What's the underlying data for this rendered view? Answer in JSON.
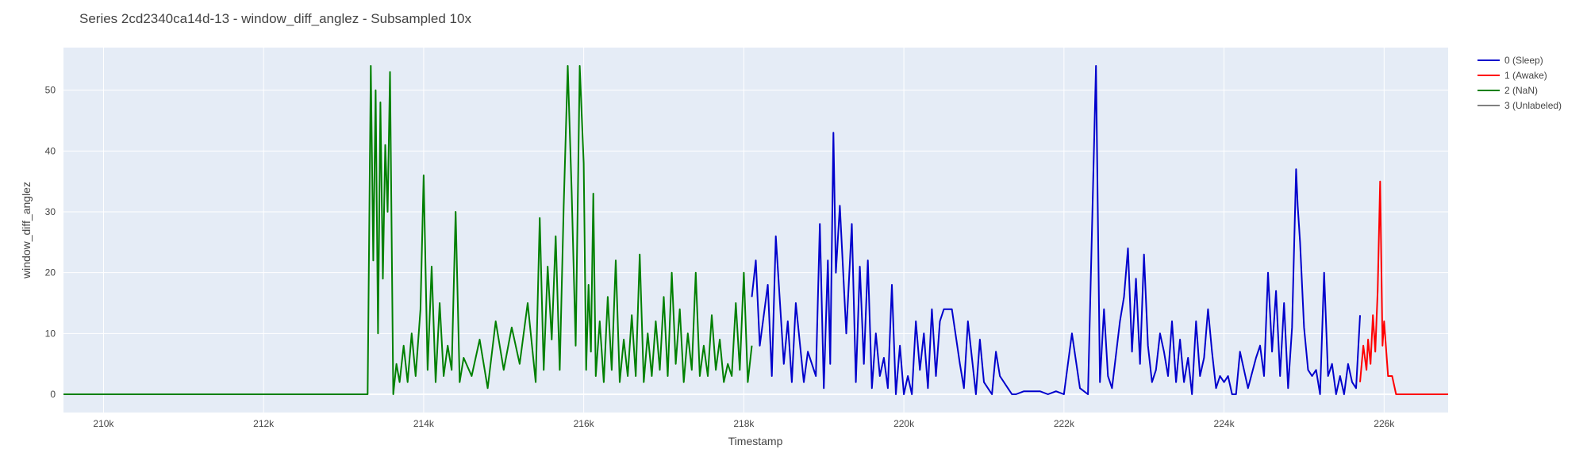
{
  "chart_data": {
    "type": "line",
    "title": "Series 2cd2340ca14d-13 - window_diff_anglez - Subsampled 10x",
    "xlabel": "Timestamp",
    "ylabel": "window_diff_anglez",
    "xlim": [
      209500,
      226800
    ],
    "ylim": [
      -3,
      57
    ],
    "x_ticks": [
      210000,
      212000,
      214000,
      216000,
      218000,
      220000,
      222000,
      224000,
      226000
    ],
    "x_tick_labels": [
      "210k",
      "212k",
      "214k",
      "216k",
      "218k",
      "220k",
      "222k",
      "224k",
      "226k"
    ],
    "y_ticks": [
      0,
      10,
      20,
      30,
      40,
      50
    ],
    "y_tick_labels": [
      "0",
      "10",
      "20",
      "30",
      "40",
      "50"
    ],
    "grid": true,
    "legend_position": "top-right",
    "series": [
      {
        "name": "0 (Sleep)",
        "color": "#0000cc",
        "x": [
          218100,
          218150,
          218200,
          218300,
          218350,
          218400,
          218500,
          218550,
          218600,
          218650,
          218750,
          218800,
          218900,
          218950,
          219000,
          219050,
          219080,
          219120,
          219150,
          219200,
          219280,
          219350,
          219400,
          219450,
          219500,
          219550,
          219600,
          219650,
          219700,
          219750,
          219800,
          219850,
          219900,
          219950,
          220000,
          220050,
          220100,
          220150,
          220200,
          220250,
          220300,
          220350,
          220400,
          220450,
          220500,
          220600,
          220700,
          220750,
          220800,
          220900,
          220950,
          221000,
          221100,
          221150,
          221200,
          221300,
          221350,
          221400,
          221500,
          221600,
          221700,
          221800,
          221900,
          222000,
          222100,
          222200,
          222300,
          222400,
          222450,
          222500,
          222550,
          222600,
          222700,
          222750,
          222800,
          222850,
          222900,
          222950,
          223000,
          223050,
          223100,
          223150,
          223200,
          223250,
          223300,
          223350,
          223400,
          223450,
          223500,
          223550,
          223600,
          223650,
          223700,
          223750,
          223800,
          223850,
          223900,
          223950,
          224000,
          224050,
          224100,
          224150,
          224200,
          224300,
          224400,
          224450,
          224500,
          224550,
          224600,
          224650,
          224700,
          224750,
          224800,
          224850,
          224900,
          224920,
          224950,
          225000,
          225050,
          225100,
          225150,
          225200,
          225250,
          225300,
          225350,
          225400,
          225450,
          225500,
          225550,
          225600,
          225650,
          225700
        ],
        "y": [
          16,
          22,
          8,
          18,
          3,
          26,
          5,
          12,
          2,
          15,
          2,
          7,
          3,
          28,
          1,
          22,
          5,
          43,
          20,
          31,
          10,
          28,
          2,
          21,
          5,
          22,
          1,
          10,
          3,
          6,
          1,
          18,
          0,
          8,
          0,
          3,
          0,
          12,
          4,
          10,
          1,
          14,
          3,
          12,
          14,
          14,
          5,
          1,
          12,
          0,
          9,
          2,
          0,
          7,
          3,
          1,
          0,
          0,
          0.5,
          0.5,
          0.5,
          0,
          0.5,
          0,
          10,
          1,
          0,
          54,
          2,
          14,
          3,
          1,
          12,
          16,
          24,
          7,
          19,
          5,
          23,
          8,
          2,
          4,
          10,
          7,
          3,
          12,
          2,
          9,
          2,
          6,
          0,
          12,
          3,
          6,
          14,
          7,
          1,
          3,
          2,
          3,
          0,
          0,
          7,
          1,
          6,
          8,
          3,
          20,
          7,
          17,
          3,
          15,
          1,
          11,
          37,
          31,
          25,
          11,
          4,
          3,
          4,
          0,
          20,
          3,
          5,
          0,
          3,
          0,
          5,
          2,
          1,
          13
        ],
        "note_shape": "dense high-frequency activity trace"
      },
      {
        "name": "1 (Awake)",
        "color": "#ff0000",
        "x": [
          225700,
          225740,
          225780,
          225800,
          225830,
          225860,
          225890,
          225920,
          225950,
          225980,
          226000,
          226050,
          226100,
          226150,
          226200,
          226300,
          226800
        ],
        "y": [
          2,
          8,
          4,
          9,
          5,
          13,
          7,
          17,
          35,
          8,
          12,
          3,
          3,
          0,
          0,
          0,
          0
        ]
      },
      {
        "name": "2 (NaN)",
        "color": "#008000",
        "x": [
          209500,
          213300,
          213340,
          213370,
          213400,
          213430,
          213460,
          213490,
          213520,
          213550,
          213580,
          213620,
          213660,
          213700,
          213750,
          213800,
          213850,
          213900,
          213960,
          214000,
          214050,
          214100,
          214150,
          214200,
          214250,
          214300,
          214350,
          214400,
          214450,
          214500,
          214600,
          214700,
          214800,
          214900,
          215000,
          215100,
          215200,
          215300,
          215400,
          215450,
          215500,
          215550,
          215600,
          215650,
          215700,
          215750,
          215800,
          215850,
          215900,
          215950,
          216000,
          216030,
          216060,
          216090,
          216120,
          216150,
          216200,
          216250,
          216300,
          216350,
          216400,
          216450,
          216500,
          216550,
          216600,
          216650,
          216700,
          216750,
          216800,
          216850,
          216900,
          216950,
          217000,
          217050,
          217100,
          217150,
          217200,
          217250,
          217300,
          217350,
          217400,
          217450,
          217500,
          217550,
          217600,
          217650,
          217700,
          217750,
          217800,
          217850,
          217900,
          217950,
          218000,
          218050,
          218100
        ],
        "y": [
          0,
          0,
          54,
          22,
          50,
          10,
          48,
          19,
          41,
          30,
          53,
          0,
          5,
          2,
          8,
          2,
          10,
          3,
          14,
          36,
          4,
          21,
          2,
          15,
          3,
          8,
          4,
          30,
          2,
          6,
          3,
          9,
          1,
          12,
          4,
          11,
          5,
          15,
          2,
          29,
          4,
          21,
          9,
          26,
          4,
          31,
          54,
          33,
          8,
          54,
          38,
          4,
          18,
          7,
          33,
          3,
          12,
          2,
          16,
          4,
          22,
          2,
          9,
          3,
          13,
          3,
          23,
          2,
          10,
          3,
          12,
          4,
          16,
          3,
          20,
          5,
          14,
          2,
          10,
          4,
          20,
          3,
          8,
          3,
          13,
          4,
          9,
          2,
          5,
          3,
          15,
          4,
          20,
          2,
          8
        ]
      },
      {
        "name": "3 (Unlabeled)",
        "color": "#808080",
        "x": [],
        "y": []
      }
    ]
  }
}
